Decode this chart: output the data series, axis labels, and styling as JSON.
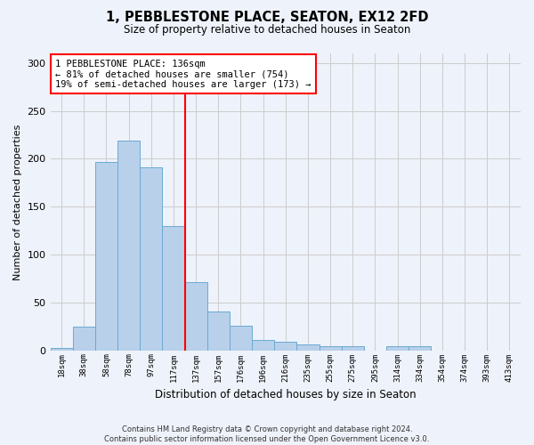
{
  "title_line1": "1, PEBBLESTONE PLACE, SEATON, EX12 2FD",
  "title_line2": "Size of property relative to detached houses in Seaton",
  "xlabel": "Distribution of detached houses by size in Seaton",
  "ylabel": "Number of detached properties",
  "footer_line1": "Contains HM Land Registry data © Crown copyright and database right 2024.",
  "footer_line2": "Contains public sector information licensed under the Open Government Licence v3.0.",
  "bar_labels": [
    "18sqm",
    "38sqm",
    "58sqm",
    "78sqm",
    "97sqm",
    "117sqm",
    "137sqm",
    "157sqm",
    "176sqm",
    "196sqm",
    "216sqm",
    "235sqm",
    "255sqm",
    "275sqm",
    "295sqm",
    "314sqm",
    "334sqm",
    "354sqm",
    "374sqm",
    "393sqm",
    "413sqm"
  ],
  "bar_values": [
    2,
    25,
    197,
    219,
    191,
    130,
    71,
    41,
    26,
    11,
    9,
    6,
    4,
    4,
    0,
    4,
    4,
    0,
    0,
    0,
    0
  ],
  "bar_color": "#b8d0ea",
  "bar_edge_color": "#6aaad4",
  "annotation_text": "1 PEBBLESTONE PLACE: 136sqm\n← 81% of detached houses are smaller (754)\n19% of semi-detached houses are larger (173) →",
  "annotation_box_color": "white",
  "annotation_box_edge_color": "red",
  "vline_x_index": 5.5,
  "vline_color": "red",
  "ylim": [
    0,
    310
  ],
  "yticks": [
    0,
    50,
    100,
    150,
    200,
    250,
    300
  ],
  "grid_color": "#cccccc",
  "background_color": "#eef2fa"
}
